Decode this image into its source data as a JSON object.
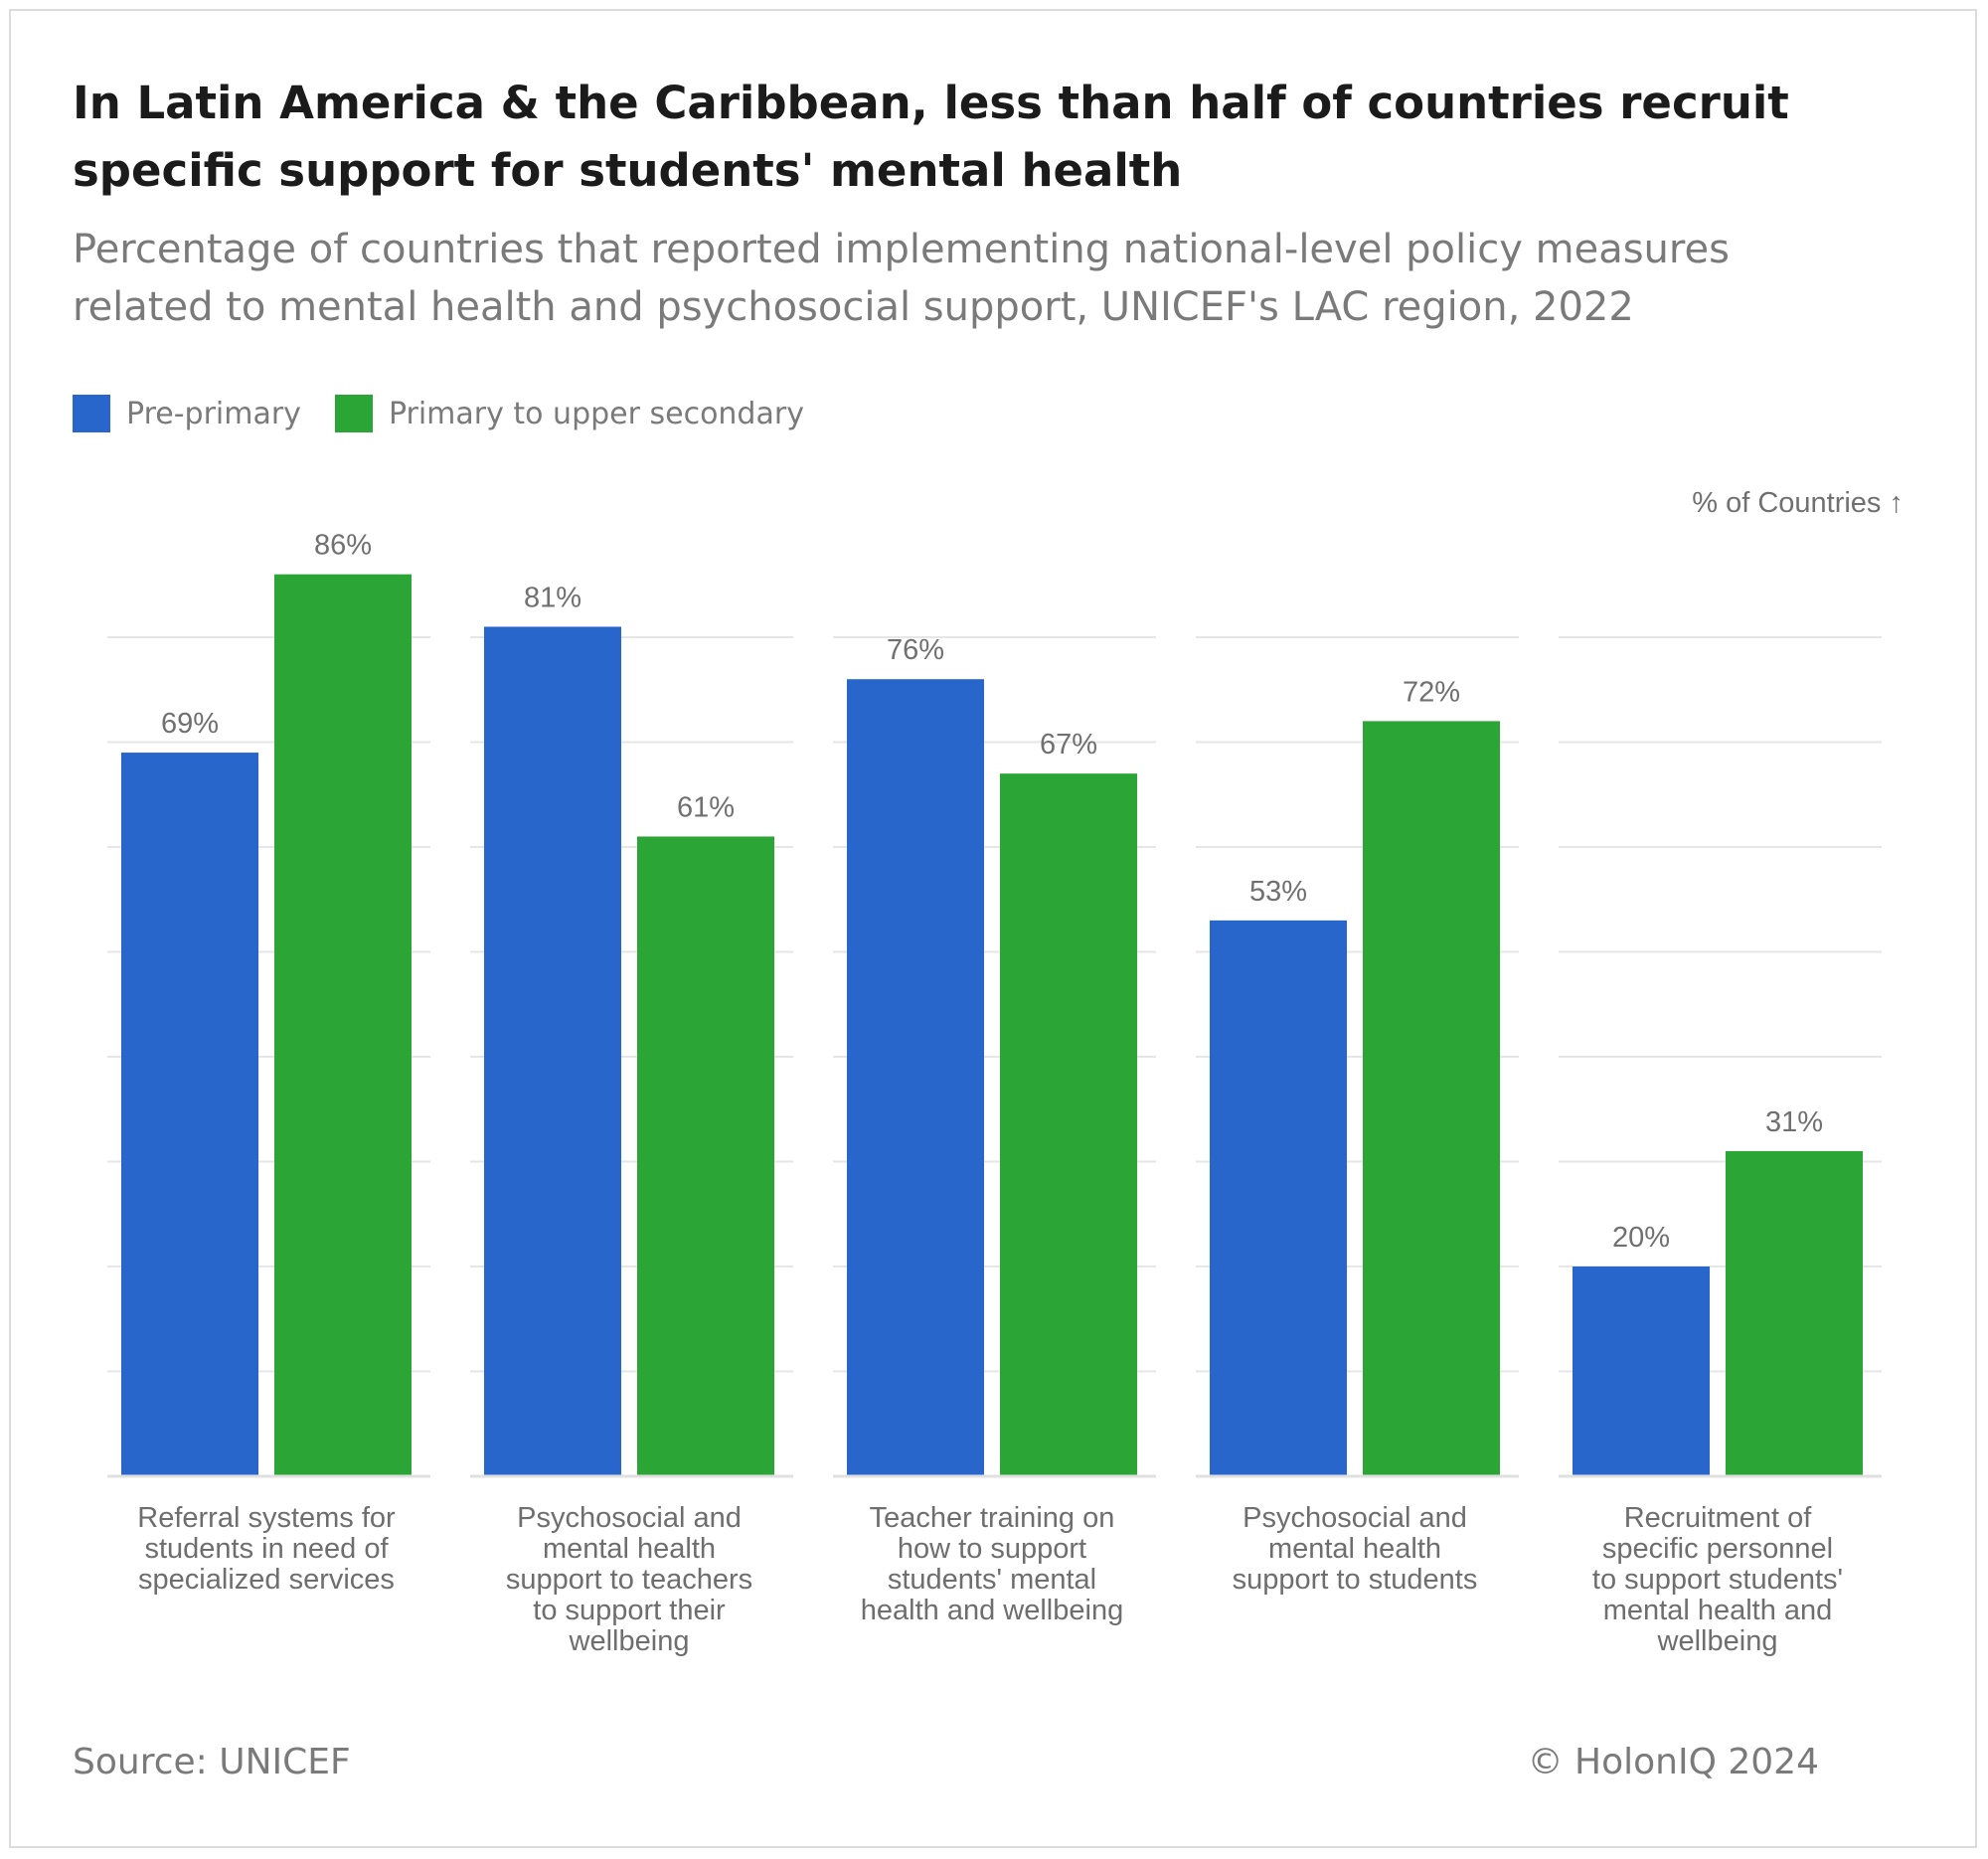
{
  "header": {
    "title": "In Latin America & the Caribbean, less than half of countries recruit specific support for students' mental health",
    "subtitle": "Percentage of countries that reported implementing national-level policy measures related to mental health and psychosocial support, UNICEF's LAC region, 2022"
  },
  "legend": {
    "items": [
      {
        "label": "Pre-primary",
        "color": "#2966cc"
      },
      {
        "label": "Primary to upper secondary",
        "color": "#2ba636"
      }
    ],
    "placement": "top-left"
  },
  "chart_data": {
    "type": "bar",
    "ylabel": "% of Countries ↑",
    "ylim": [
      0,
      100
    ],
    "grid": true,
    "categories": [
      "Referral systems for students in need of specialized services",
      "Psychosocial and mental health support to teachers to support their wellbeing",
      "Teacher training on how to support students' mental health and wellbeing",
      "Psychosocial and mental health support to students",
      "Recruitment of specific personnel to support students' mental health and wellbeing"
    ],
    "category_label_lines": [
      [
        "Referral systems for",
        "students in need of",
        "specialized services"
      ],
      [
        "Psychosocial and",
        "mental health",
        "support to teachers",
        "to support their",
        "wellbeing"
      ],
      [
        "Teacher training on",
        "how to support",
        "students' mental",
        "health and wellbeing"
      ],
      [
        "Psychosocial and",
        "mental health",
        "support to students"
      ],
      [
        "Recruitment of",
        "specific personnel",
        "to support students'",
        "mental health and",
        "wellbeing"
      ]
    ],
    "series": [
      {
        "name": "Pre-primary",
        "color": "#2966cc",
        "values": [
          69,
          81,
          76,
          53,
          20
        ],
        "labels": [
          "69%",
          "81%",
          "76%",
          "53%",
          "20%"
        ]
      },
      {
        "name": "Primary to upper secondary",
        "color": "#2ba636",
        "values": [
          86,
          61,
          67,
          72,
          31
        ],
        "labels": [
          "86%",
          "61%",
          "67%",
          "72%",
          "31%"
        ]
      }
    ]
  },
  "footer": {
    "source": "Source: UNICEF",
    "copyright": "© HolonIQ 2024"
  }
}
